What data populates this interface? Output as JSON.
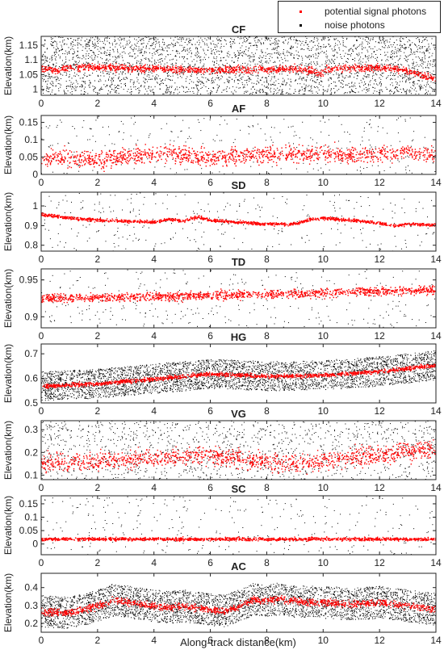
{
  "legend": {
    "placement": "top-right",
    "items": [
      {
        "label": "potential signal photons",
        "color": "#ff0000"
      },
      {
        "label": "noise photons",
        "color": "#000000"
      }
    ]
  },
  "xlabel": "Along-track distance(km)",
  "chart_data": [
    {
      "type": "scatter",
      "title": "CF",
      "ylabel": "Elevation(km)",
      "xlim": [
        0,
        14
      ],
      "ylim": [
        0.98,
        1.18
      ],
      "xticks": [
        0,
        2,
        4,
        6,
        8,
        10,
        12,
        14
      ],
      "yticks": [
        1,
        1.05,
        1.1,
        1.15
      ],
      "ytick_labels": [
        "1",
        "1.05",
        "1.1",
        "1.15"
      ],
      "signal": {
        "x": [
          0,
          0.5,
          1,
          1.5,
          2,
          3,
          4,
          5,
          6,
          7,
          8,
          9,
          9.5,
          9.8,
          10.2,
          11,
          12,
          12.5,
          13,
          13.5,
          14
        ],
        "y": [
          1.075,
          1.065,
          1.075,
          1.077,
          1.076,
          1.074,
          1.072,
          1.07,
          1.067,
          1.068,
          1.07,
          1.072,
          1.066,
          1.052,
          1.072,
          1.074,
          1.075,
          1.072,
          1.065,
          1.05,
          1.035
        ]
      },
      "signal_spread": 0.006,
      "noise": {
        "density": "high",
        "ymin": 0.985,
        "ymax": 1.18
      }
    },
    {
      "type": "scatter",
      "title": "AF",
      "ylabel": "Elevation(km)",
      "xlim": [
        0,
        14
      ],
      "ylim": [
        0,
        0.17
      ],
      "xticks": [
        0,
        2,
        4,
        6,
        8,
        10,
        12,
        14
      ],
      "yticks": [
        0,
        0.05,
        0.1,
        0.15
      ],
      "ytick_labels": [
        "0",
        "0.05",
        "0.1",
        "0.15"
      ],
      "signal": {
        "x": [
          0,
          1,
          2,
          3,
          4,
          5,
          6,
          7,
          8,
          9,
          10,
          11,
          12,
          13,
          14
        ],
        "y": [
          0.045,
          0.05,
          0.04,
          0.055,
          0.06,
          0.06,
          0.05,
          0.055,
          0.06,
          0.06,
          0.06,
          0.055,
          0.06,
          0.065,
          0.055
        ]
      },
      "signal_spread": 0.012,
      "noise": {
        "density": "low",
        "ymin": 0,
        "ymax": 0.17
      }
    },
    {
      "type": "scatter",
      "title": "SD",
      "ylabel": "Elevation(km)",
      "xlim": [
        0,
        14
      ],
      "ylim": [
        0.77,
        1.07
      ],
      "xticks": [
        0,
        2,
        4,
        6,
        8,
        10,
        12,
        14
      ],
      "yticks": [
        0.8,
        0.9,
        1
      ],
      "ytick_labels": [
        "0.8",
        "0.9",
        "1"
      ],
      "signal": {
        "x": [
          0,
          0.5,
          1,
          1.5,
          2,
          3,
          4,
          4.5,
          5,
          5.5,
          6,
          7,
          8,
          9,
          9.5,
          10,
          11,
          12,
          12.5,
          13,
          14
        ],
        "y": [
          0.96,
          0.95,
          0.94,
          0.935,
          0.93,
          0.925,
          0.92,
          0.935,
          0.925,
          0.945,
          0.93,
          0.92,
          0.91,
          0.91,
          0.935,
          0.94,
          0.93,
          0.915,
          0.9,
          0.91,
          0.905
        ]
      },
      "signal_spread": 0.004,
      "noise": {
        "density": "low",
        "ymin": 0.77,
        "ymax": 1.07
      }
    },
    {
      "type": "scatter",
      "title": "TD",
      "ylabel": "Elevation(km)",
      "xlim": [
        0,
        14
      ],
      "ylim": [
        0.885,
        0.965
      ],
      "xticks": [
        0,
        2,
        4,
        6,
        8,
        10,
        12,
        14
      ],
      "yticks": [
        0.9,
        0.95
      ],
      "ytick_labels": [
        "0.9",
        "0.95"
      ],
      "signal": {
        "x": [
          0,
          2,
          4,
          6,
          8,
          10,
          12,
          14
        ],
        "y": [
          0.925,
          0.927,
          0.928,
          0.93,
          0.931,
          0.933,
          0.935,
          0.937
        ]
      },
      "signal_spread": 0.003,
      "noise": {
        "density": "low",
        "ymin": 0.885,
        "ymax": 0.965
      }
    },
    {
      "type": "scatter",
      "title": "HG",
      "ylabel": "Elevation(km)",
      "xlim": [
        0,
        14
      ],
      "ylim": [
        0.5,
        0.74
      ],
      "xticks": [
        0,
        2,
        4,
        6,
        8,
        10,
        12,
        14
      ],
      "yticks": [
        0.5,
        0.6,
        0.7
      ],
      "ytick_labels": [
        "0.5",
        "0.6",
        "0.7"
      ],
      "signal": {
        "x": [
          0,
          2,
          4,
          6,
          8,
          10,
          12,
          14
        ],
        "y": [
          0.57,
          0.58,
          0.6,
          0.62,
          0.61,
          0.615,
          0.63,
          0.655
        ]
      },
      "signal_spread": 0.004,
      "noise": {
        "density": "band",
        "halfwidth": 0.06
      }
    },
    {
      "type": "scatter",
      "title": "VG",
      "ylabel": "Elevation(km)",
      "xlim": [
        0,
        14
      ],
      "ylim": [
        0.08,
        0.34
      ],
      "xticks": [
        0,
        2,
        4,
        6,
        8,
        10,
        12,
        14
      ],
      "yticks": [
        0.1,
        0.2,
        0.3
      ],
      "ytick_labels": [
        "0.1",
        "0.2",
        "0.3"
      ],
      "signal": {
        "x": [
          0,
          1,
          2,
          3,
          4,
          5,
          6,
          7,
          8,
          9,
          10,
          11,
          12,
          13,
          14
        ],
        "y": [
          0.16,
          0.16,
          0.165,
          0.17,
          0.175,
          0.185,
          0.19,
          0.175,
          0.16,
          0.16,
          0.165,
          0.18,
          0.19,
          0.21,
          0.22
        ]
      },
      "signal_spread": 0.02,
      "noise": {
        "density": "medium",
        "ymin": 0.08,
        "ymax": 0.34
      }
    },
    {
      "type": "scatter",
      "title": "SC",
      "ylabel": "Elevation(km)",
      "xlim": [
        0,
        14
      ],
      "ylim": [
        -0.04,
        0.18
      ],
      "xticks": [
        0,
        2,
        4,
        6,
        8,
        10,
        12,
        14
      ],
      "yticks": [
        0,
        0.05,
        0.1,
        0.15
      ],
      "ytick_labels": [
        "0",
        "0.05",
        "0.1",
        "0.15"
      ],
      "signal": {
        "x": [
          0,
          14
        ],
        "y": [
          0.02,
          0.02
        ]
      },
      "signal_spread": 0.003,
      "noise": {
        "density": "low",
        "ymin": -0.04,
        "ymax": 0.18
      }
    },
    {
      "type": "scatter",
      "title": "AC",
      "ylabel": "Elevation(km)",
      "xlim": [
        0,
        14
      ],
      "ylim": [
        0.15,
        0.48
      ],
      "xticks": [
        0,
        2,
        4,
        6,
        8,
        10,
        12,
        14
      ],
      "yticks": [
        0.2,
        0.3,
        0.4
      ],
      "ytick_labels": [
        "0.2",
        "0.3",
        "0.4"
      ],
      "signal": {
        "x": [
          0,
          0.5,
          1,
          1.5,
          2,
          2.5,
          3,
          3.5,
          4,
          4.5,
          5,
          5.5,
          6,
          6.5,
          7,
          7.5,
          8,
          8.5,
          9,
          10,
          11,
          12,
          12.5,
          13,
          13.5,
          14
        ],
        "y": [
          0.27,
          0.265,
          0.26,
          0.28,
          0.3,
          0.33,
          0.325,
          0.31,
          0.3,
          0.29,
          0.3,
          0.29,
          0.28,
          0.27,
          0.3,
          0.335,
          0.33,
          0.34,
          0.325,
          0.32,
          0.31,
          0.32,
          0.31,
          0.3,
          0.29,
          0.28
        ]
      },
      "signal_spread": 0.01,
      "noise": {
        "density": "band",
        "halfwidth": 0.09
      }
    }
  ]
}
